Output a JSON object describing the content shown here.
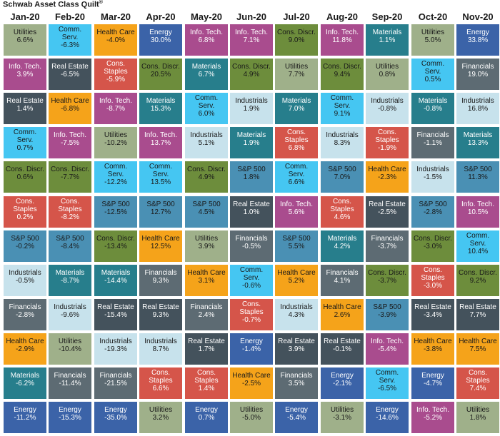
{
  "title": "Schwab Asset Class Quilt",
  "title_mark": "®",
  "colors": {
    "Utilities": "#9fb08a",
    "Info. Tech.": "#a94c8e",
    "Real Estate": "#44525c",
    "Comm. Serv.": "#45c6f2",
    "Cons. Discr.": "#6d8d3c",
    "Cons. Staples": "#d5554a",
    "S&P 500": "#4a90b4",
    "Industrials": "#c7e2ec",
    "Financials": "#5d6b73",
    "Health Care": "#f5a31a",
    "Materials": "#277e8c",
    "Energy": "#3b63a8"
  },
  "text_colors": {
    "Utilities": "#1a1a1a",
    "Info. Tech.": "#ffffff",
    "Real Estate": "#ffffff",
    "Comm. Serv.": "#1a1a1a",
    "Cons. Discr.": "#1a1a1a",
    "Cons. Staples": "#ffffff",
    "S&P 500": "#1a1a1a",
    "Industrials": "#1a1a1a",
    "Financials": "#ffffff",
    "Health Care": "#1a1a1a",
    "Materials": "#ffffff",
    "Energy": "#ffffff"
  },
  "chart_data": {
    "type": "table",
    "title": "Schwab Asset Class Quilt",
    "columns": [
      {
        "month": "Jan-20",
        "cells": [
          {
            "name": "Utilities",
            "value": "6.6%"
          },
          {
            "name": "Info. Tech.",
            "value": "3.9%"
          },
          {
            "name": "Real Estate",
            "value": "1.4%"
          },
          {
            "name": "Comm. Serv.",
            "value": "0.7%"
          },
          {
            "name": "Cons. Discr.",
            "value": "0.6%"
          },
          {
            "name": "Cons. Staples",
            "value": "0.2%"
          },
          {
            "name": "S&P 500",
            "value": "-0.2%"
          },
          {
            "name": "Industrials",
            "value": "-0.5%"
          },
          {
            "name": "Financials",
            "value": "-2.8%"
          },
          {
            "name": "Health Care",
            "value": "-2.9%"
          },
          {
            "name": "Materials",
            "value": "-6.2%"
          },
          {
            "name": "Energy",
            "value": "-11.2%"
          }
        ]
      },
      {
        "month": "Feb-20",
        "cells": [
          {
            "name": "Comm. Serv.",
            "value": "-6.3%"
          },
          {
            "name": "Real Estate",
            "value": "-6.5%"
          },
          {
            "name": "Health Care",
            "value": "-6.8%"
          },
          {
            "name": "Info. Tech.",
            "value": "-7.5%"
          },
          {
            "name": "Cons. Discr.",
            "value": "-7.7%"
          },
          {
            "name": "Cons. Staples",
            "value": "-8.2%"
          },
          {
            "name": "S&P 500",
            "value": "-8.4%"
          },
          {
            "name": "Materials",
            "value": "-8.7%"
          },
          {
            "name": "Industrials",
            "value": "-9.6%"
          },
          {
            "name": "Utilities",
            "value": "-10.4%"
          },
          {
            "name": "Financials",
            "value": "-11.4%"
          },
          {
            "name": "Energy",
            "value": "-15.3%"
          }
        ]
      },
      {
        "month": "Mar-20",
        "cells": [
          {
            "name": "Health Care",
            "value": "-4.0%"
          },
          {
            "name": "Cons. Staples",
            "value": "-5.9%"
          },
          {
            "name": "Info. Tech.",
            "value": "-8.7%"
          },
          {
            "name": "Utilities",
            "value": "-10.2%"
          },
          {
            "name": "Comm. Serv.",
            "value": "-12.2%"
          },
          {
            "name": "S&P 500",
            "value": "-12.5%"
          },
          {
            "name": "Cons. Discr.",
            "value": "-13.4%"
          },
          {
            "name": "Materials",
            "value": "-14.4%"
          },
          {
            "name": "Real Estate",
            "value": "-15.4%"
          },
          {
            "name": "Industrials",
            "value": "-19.3%"
          },
          {
            "name": "Financials",
            "value": "-21.5%"
          },
          {
            "name": "Energy",
            "value": "-35.0%"
          }
        ]
      },
      {
        "month": "Apr-20",
        "cells": [
          {
            "name": "Energy",
            "value": "30.0%"
          },
          {
            "name": "Cons. Discr.",
            "value": "20.5%"
          },
          {
            "name": "Materials",
            "value": "15.3%"
          },
          {
            "name": "Info. Tech.",
            "value": "13.7%"
          },
          {
            "name": "Comm. Serv.",
            "value": "13.5%"
          },
          {
            "name": "S&P 500",
            "value": "12.7%"
          },
          {
            "name": "Health Care",
            "value": "12.5%"
          },
          {
            "name": "Financials",
            "value": "9.3%"
          },
          {
            "name": "Real Estate",
            "value": "9.3%"
          },
          {
            "name": "Industrials",
            "value": "8.7%"
          },
          {
            "name": "Cons. Staples",
            "value": "6.6%"
          },
          {
            "name": "Utilities",
            "value": "3.2%"
          }
        ]
      },
      {
        "month": "May-20",
        "cells": [
          {
            "name": "Info. Tech.",
            "value": "6.8%"
          },
          {
            "name": "Materials",
            "value": "6.7%"
          },
          {
            "name": "Comm. Serv.",
            "value": "6.0%"
          },
          {
            "name": "Industrials",
            "value": "5.1%"
          },
          {
            "name": "Cons. Discr.",
            "value": "4.9%"
          },
          {
            "name": "S&P 500",
            "value": "4.5%"
          },
          {
            "name": "Utilities",
            "value": "3.9%"
          },
          {
            "name": "Health Care",
            "value": "3.1%"
          },
          {
            "name": "Financials",
            "value": "2.4%"
          },
          {
            "name": "Real Estate",
            "value": "1.7%"
          },
          {
            "name": "Cons. Staples",
            "value": "1.4%"
          },
          {
            "name": "Energy",
            "value": "0.7%"
          }
        ]
      },
      {
        "month": "Jun-20",
        "cells": [
          {
            "name": "Info. Tech.",
            "value": "7.1%"
          },
          {
            "name": "Cons. Discr.",
            "value": "4.9%"
          },
          {
            "name": "Industrials",
            "value": "1.9%"
          },
          {
            "name": "Materials",
            "value": "1.9%"
          },
          {
            "name": "S&P 500",
            "value": "1.8%"
          },
          {
            "name": "Real Estate",
            "value": "1.0%"
          },
          {
            "name": "Financials",
            "value": "-0.5%"
          },
          {
            "name": "Comm. Serv.",
            "value": "-0.6%"
          },
          {
            "name": "Cons. Staples",
            "value": "-0.7%"
          },
          {
            "name": "Energy",
            "value": "-1.4%"
          },
          {
            "name": "Health Care",
            "value": "-2.5%"
          },
          {
            "name": "Utilities",
            "value": "-5.0%"
          }
        ]
      },
      {
        "month": "Jul-20",
        "cells": [
          {
            "name": "Cons. Discr.",
            "value": "9.0%"
          },
          {
            "name": "Utilities",
            "value": "7.7%"
          },
          {
            "name": "Materials",
            "value": "7.0%"
          },
          {
            "name": "Cons. Staples",
            "value": "6.8%"
          },
          {
            "name": "Comm. Serv.",
            "value": "6.6%"
          },
          {
            "name": "Info. Tech.",
            "value": "5.6%"
          },
          {
            "name": "S&P 500",
            "value": "5.5%"
          },
          {
            "name": "Health Care",
            "value": "5.2%"
          },
          {
            "name": "Industrials",
            "value": "4.3%"
          },
          {
            "name": "Real Estate",
            "value": "3.9%"
          },
          {
            "name": "Financials",
            "value": "3.5%"
          },
          {
            "name": "Energy",
            "value": "-5.4%"
          }
        ]
      },
      {
        "month": "Aug-20",
        "cells": [
          {
            "name": "Info. Tech.",
            "value": "11.8%"
          },
          {
            "name": "Cons. Discr.",
            "value": "9.4%"
          },
          {
            "name": "Comm. Serv.",
            "value": "9.1%"
          },
          {
            "name": "Industrials",
            "value": "8.3%"
          },
          {
            "name": "S&P 500",
            "value": "7.0%"
          },
          {
            "name": "Cons. Staples",
            "value": "4.6%"
          },
          {
            "name": "Materials",
            "value": "4.2%"
          },
          {
            "name": "Financials",
            "value": "4.1%"
          },
          {
            "name": "Health Care",
            "value": "2.6%"
          },
          {
            "name": "Real Estate",
            "value": "-0.1%"
          },
          {
            "name": "Energy",
            "value": "-2.1%"
          },
          {
            "name": "Utilities",
            "value": "-3.1%"
          }
        ]
      },
      {
        "month": "Sep-20",
        "cells": [
          {
            "name": "Materials",
            "value": "1.1%"
          },
          {
            "name": "Utilities",
            "value": "0.8%"
          },
          {
            "name": "Industrials",
            "value": "-0.8%"
          },
          {
            "name": "Cons. Staples",
            "value": "-1.9%"
          },
          {
            "name": "Health Care",
            "value": "-2.3%"
          },
          {
            "name": "Real Estate",
            "value": "-2.5%"
          },
          {
            "name": "Financials",
            "value": "-3.7%"
          },
          {
            "name": "Cons. Discr.",
            "value": "-3.7%"
          },
          {
            "name": "S&P 500",
            "value": "-3.9%"
          },
          {
            "name": "Info. Tech.",
            "value": "-5.4%"
          },
          {
            "name": "Comm. Serv.",
            "value": "-6.5%"
          },
          {
            "name": "Energy",
            "value": "-14.6%"
          }
        ]
      },
      {
        "month": "Oct-20",
        "cells": [
          {
            "name": "Utilities",
            "value": "5.0%"
          },
          {
            "name": "Comm. Serv.",
            "value": "0.5%"
          },
          {
            "name": "Materials",
            "value": "-0.8%"
          },
          {
            "name": "Financials",
            "value": "-1.1%"
          },
          {
            "name": "Industrials",
            "value": "-1.5%"
          },
          {
            "name": "S&P 500",
            "value": "-2.8%"
          },
          {
            "name": "Cons. Discr.",
            "value": "-3.0%"
          },
          {
            "name": "Cons. Staples",
            "value": "-3.0%"
          },
          {
            "name": "Real Estate",
            "value": "-3.4%"
          },
          {
            "name": "Health Care",
            "value": "-3.8%"
          },
          {
            "name": "Energy",
            "value": "-4.7%"
          },
          {
            "name": "Info. Tech.",
            "value": "-5.2%"
          }
        ]
      },
      {
        "month": "Nov-20",
        "cells": [
          {
            "name": "Energy",
            "value": "33.8%"
          },
          {
            "name": "Financials",
            "value": "19.0%"
          },
          {
            "name": "Industrials",
            "value": "16.8%"
          },
          {
            "name": "Materials",
            "value": "13.3%"
          },
          {
            "name": "S&P 500",
            "value": "11.3%"
          },
          {
            "name": "Info. Tech.",
            "value": "10.5%"
          },
          {
            "name": "Comm. Serv.",
            "value": "10.4%"
          },
          {
            "name": "Cons. Discr.",
            "value": "9.2%"
          },
          {
            "name": "Real Estate",
            "value": "7.7%"
          },
          {
            "name": "Health Care",
            "value": "7.5%"
          },
          {
            "name": "Cons. Staples",
            "value": "7.4%"
          },
          {
            "name": "Utilities",
            "value": "1.8%"
          }
        ]
      }
    ]
  }
}
